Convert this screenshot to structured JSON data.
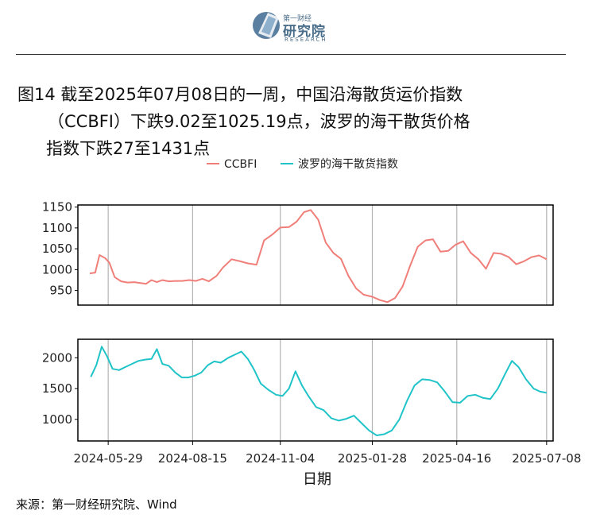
{
  "header": {
    "logo_top": "第一财经",
    "logo_main": "研究院",
    "logo_sub": "RESEARCH"
  },
  "title": {
    "line1": "图14  截至2025年07月08日的一周，中国沿海散货运价指数",
    "line2": "（CCBFI）下跌9.02至1025.19点，波罗的海干散货价格",
    "line3": "指数下跌27至1431点"
  },
  "source": "来源：第一财经研究院、Wind",
  "colors": {
    "ccbfi": "#f07f7a",
    "bdi": "#20c4c8",
    "grid": "#b3b3b3",
    "axis": "#000000"
  },
  "chart_data": {
    "type": "line",
    "xlabel": "日期",
    "x_ticks": [
      "2024-05-29",
      "2024-08-15",
      "2024-11-04",
      "2025-01-28",
      "2025-04-16",
      "2025-07-08"
    ],
    "legend": {
      "placement": "top",
      "entries": [
        "CCBFI",
        "波罗的海干散货指数"
      ]
    },
    "grid": true,
    "panels": [
      {
        "series_name": "CCBFI",
        "ylim": [
          915,
          1155
        ],
        "y_ticks": [
          950,
          1000,
          1050,
          1100,
          1150
        ],
        "points": [
          [
            "2024-05-12",
            991
          ],
          [
            "2024-05-17",
            993
          ],
          [
            "2024-05-21",
            1035
          ],
          [
            "2024-05-26",
            1028
          ],
          [
            "2024-05-30",
            1017
          ],
          [
            "2024-06-04",
            982
          ],
          [
            "2024-06-10",
            972
          ],
          [
            "2024-06-16",
            969
          ],
          [
            "2024-06-22",
            970
          ],
          [
            "2024-06-28",
            968
          ],
          [
            "2024-07-03",
            966
          ],
          [
            "2024-07-08",
            975
          ],
          [
            "2024-07-13",
            970
          ],
          [
            "2024-07-18",
            975
          ],
          [
            "2024-07-24",
            972
          ],
          [
            "2024-07-30",
            973
          ],
          [
            "2024-08-05",
            973
          ],
          [
            "2024-08-12",
            975
          ],
          [
            "2024-08-18",
            973
          ],
          [
            "2024-08-24",
            978
          ],
          [
            "2024-08-30",
            972
          ],
          [
            "2024-09-06",
            985
          ],
          [
            "2024-09-12",
            1005
          ],
          [
            "2024-09-20",
            1025
          ],
          [
            "2024-09-28",
            1020
          ],
          [
            "2024-10-05",
            1015
          ],
          [
            "2024-10-13",
            1012
          ],
          [
            "2024-10-20",
            1070
          ],
          [
            "2024-10-28",
            1085
          ],
          [
            "2024-11-04",
            1101
          ],
          [
            "2024-11-12",
            1102
          ],
          [
            "2024-11-19",
            1115
          ],
          [
            "2024-11-26",
            1138
          ],
          [
            "2024-12-02",
            1143
          ],
          [
            "2024-12-09",
            1120
          ],
          [
            "2024-12-16",
            1065
          ],
          [
            "2024-12-23",
            1040
          ],
          [
            "2024-12-30",
            1026
          ],
          [
            "2025-01-06",
            985
          ],
          [
            "2025-01-13",
            955
          ],
          [
            "2025-01-20",
            940
          ],
          [
            "2025-01-28",
            935
          ],
          [
            "2025-02-04",
            927
          ],
          [
            "2025-02-11",
            922
          ],
          [
            "2025-02-18",
            932
          ],
          [
            "2025-02-25",
            960
          ],
          [
            "2025-03-04",
            1010
          ],
          [
            "2025-03-11",
            1055
          ],
          [
            "2025-03-18",
            1070
          ],
          [
            "2025-03-25",
            1073
          ],
          [
            "2025-04-01",
            1043
          ],
          [
            "2025-04-08",
            1045
          ],
          [
            "2025-04-15",
            1060
          ],
          [
            "2025-04-22",
            1068
          ],
          [
            "2025-04-29",
            1040
          ],
          [
            "2025-05-06",
            1025
          ],
          [
            "2025-05-13",
            1002
          ],
          [
            "2025-05-20",
            1040
          ],
          [
            "2025-05-27",
            1038
          ],
          [
            "2025-06-03",
            1030
          ],
          [
            "2025-06-10",
            1013
          ],
          [
            "2025-06-17",
            1020
          ],
          [
            "2025-06-24",
            1030
          ],
          [
            "2025-07-01",
            1034
          ],
          [
            "2025-07-08",
            1025
          ]
        ]
      },
      {
        "series_name": "波罗的海干散货指数",
        "ylim": [
          650,
          2300
        ],
        "y_ticks": [
          1000,
          1500,
          2000
        ],
        "points": [
          [
            "2024-05-13",
            1690
          ],
          [
            "2024-05-18",
            1880
          ],
          [
            "2024-05-23",
            2180
          ],
          [
            "2024-05-28",
            2020
          ],
          [
            "2024-06-02",
            1820
          ],
          [
            "2024-06-08",
            1800
          ],
          [
            "2024-06-14",
            1850
          ],
          [
            "2024-06-20",
            1900
          ],
          [
            "2024-06-26",
            1950
          ],
          [
            "2024-07-02",
            1970
          ],
          [
            "2024-07-08",
            1980
          ],
          [
            "2024-07-13",
            2140
          ],
          [
            "2024-07-18",
            1900
          ],
          [
            "2024-07-24",
            1870
          ],
          [
            "2024-07-30",
            1760
          ],
          [
            "2024-08-05",
            1680
          ],
          [
            "2024-08-11",
            1680
          ],
          [
            "2024-08-17",
            1710
          ],
          [
            "2024-08-23",
            1760
          ],
          [
            "2024-08-29",
            1880
          ],
          [
            "2024-09-04",
            1940
          ],
          [
            "2024-09-10",
            1920
          ],
          [
            "2024-09-17",
            2000
          ],
          [
            "2024-09-23",
            2050
          ],
          [
            "2024-09-29",
            2100
          ],
          [
            "2024-10-05",
            1980
          ],
          [
            "2024-10-11",
            1800
          ],
          [
            "2024-10-17",
            1580
          ],
          [
            "2024-10-24",
            1480
          ],
          [
            "2024-10-31",
            1400
          ],
          [
            "2024-11-06",
            1380
          ],
          [
            "2024-11-12",
            1500
          ],
          [
            "2024-11-18",
            1780
          ],
          [
            "2024-11-24",
            1550
          ],
          [
            "2024-11-30",
            1380
          ],
          [
            "2024-12-07",
            1200
          ],
          [
            "2024-12-14",
            1150
          ],
          [
            "2024-12-21",
            1020
          ],
          [
            "2024-12-28",
            980
          ],
          [
            "2025-01-04",
            1010
          ],
          [
            "2025-01-11",
            1060
          ],
          [
            "2025-01-18",
            940
          ],
          [
            "2025-01-25",
            820
          ],
          [
            "2025-02-01",
            740
          ],
          [
            "2025-02-08",
            760
          ],
          [
            "2025-02-15",
            820
          ],
          [
            "2025-02-22",
            1000
          ],
          [
            "2025-03-01",
            1300
          ],
          [
            "2025-03-08",
            1550
          ],
          [
            "2025-03-15",
            1650
          ],
          [
            "2025-03-22",
            1640
          ],
          [
            "2025-03-29",
            1600
          ],
          [
            "2025-04-05",
            1450
          ],
          [
            "2025-04-12",
            1280
          ],
          [
            "2025-04-19",
            1270
          ],
          [
            "2025-04-26",
            1380
          ],
          [
            "2025-05-03",
            1400
          ],
          [
            "2025-05-10",
            1350
          ],
          [
            "2025-05-17",
            1330
          ],
          [
            "2025-05-24",
            1500
          ],
          [
            "2025-05-31",
            1750
          ],
          [
            "2025-06-06",
            1950
          ],
          [
            "2025-06-12",
            1850
          ],
          [
            "2025-06-19",
            1650
          ],
          [
            "2025-06-26",
            1500
          ],
          [
            "2025-07-02",
            1450
          ],
          [
            "2025-07-08",
            1431
          ]
        ]
      }
    ]
  }
}
